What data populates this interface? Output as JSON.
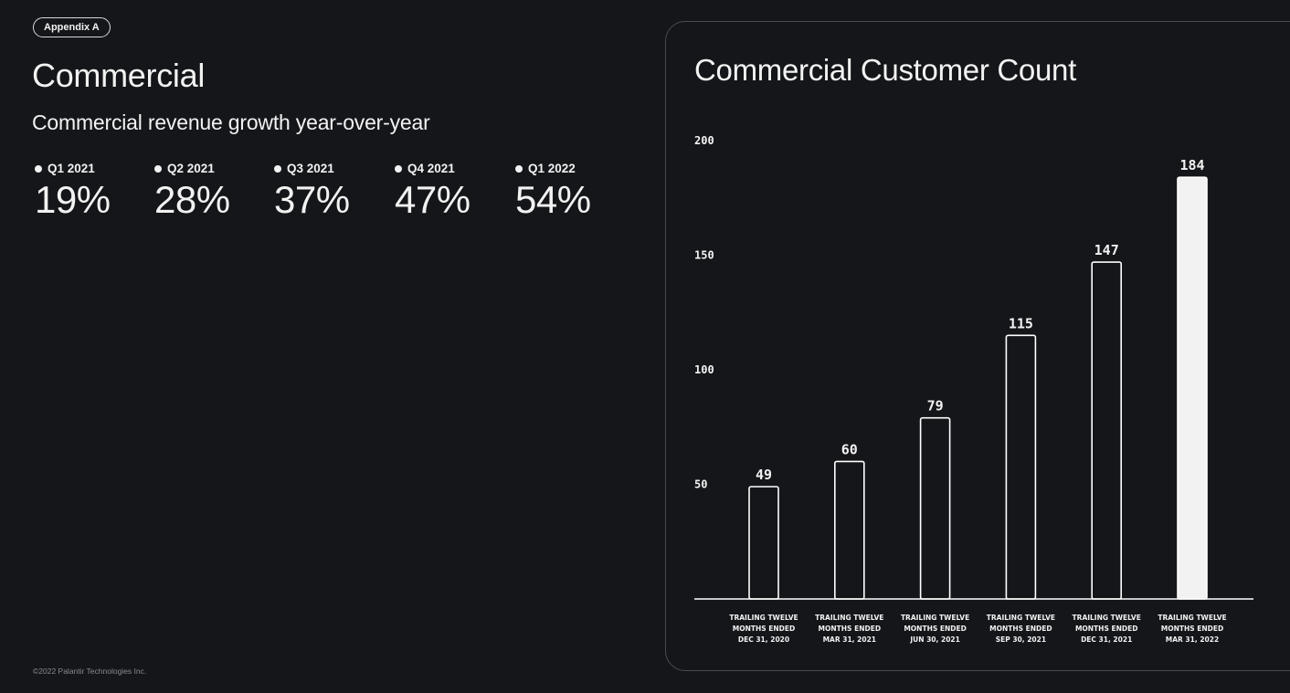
{
  "tag": "Appendix A",
  "title": "Commercial",
  "subtitle": "Commercial revenue growth year-over-year",
  "metrics": [
    {
      "label": "Q1 2021",
      "value": "19%"
    },
    {
      "label": "Q2 2021",
      "value": "28%"
    },
    {
      "label": "Q3 2021",
      "value": "37%"
    },
    {
      "label": "Q4 2021",
      "value": "47%"
    },
    {
      "label": "Q1 2022",
      "value": "54%"
    }
  ],
  "footer": "©2022 Palantir Technologies Inc.",
  "colors": {
    "background": "#15161a",
    "bar_outline": "#ffffff",
    "bar_highlight_fill": "#f2f2f2",
    "text": "#f2f2f2",
    "panel_border": "#4a4b50"
  },
  "chart_data": {
    "type": "bar",
    "title": "Commercial Customer Count",
    "categories": [
      [
        "TRAILING TWELVE",
        "MONTHS ENDED",
        "DEC 31, 2020"
      ],
      [
        "TRAILING TWELVE",
        "MONTHS ENDED",
        "MAR 31, 2021"
      ],
      [
        "TRAILING TWELVE",
        "MONTHS ENDED",
        "JUN 30, 2021"
      ],
      [
        "TRAILING TWELVE",
        "MONTHS ENDED",
        "SEP 30, 2021"
      ],
      [
        "TRAILING TWELVE",
        "MONTHS ENDED",
        "DEC 31, 2021"
      ],
      [
        "TRAILING TWELVE",
        "MONTHS ENDED",
        "MAR 31, 2022"
      ]
    ],
    "values": [
      49,
      60,
      79,
      115,
      147,
      184
    ],
    "value_labels": [
      "49",
      "60",
      "79",
      "115",
      "147",
      "184"
    ],
    "highlight": [
      false,
      false,
      false,
      false,
      false,
      true
    ],
    "ylim": [
      0,
      200
    ],
    "yticks": [
      50,
      100,
      150,
      200
    ],
    "ytick_labels": [
      "50",
      "100",
      "150",
      "200"
    ],
    "xlabel": "",
    "ylabel": "",
    "grid": false,
    "legend": "none"
  }
}
